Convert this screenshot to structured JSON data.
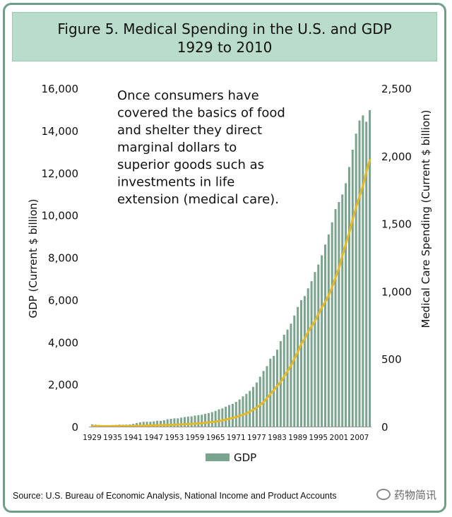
{
  "figure": {
    "title_line1": "Figure 5. Medical Spending in the U.S. and GDP",
    "title_line2": "1929 to 2010",
    "source": "Source: U.S. Bureau of Economic Analysis, National Income and Product Accounts",
    "watermark": "药物简讯",
    "colors": {
      "frame": "#6f9f86",
      "title_bg": "#b9dccb",
      "bar": "#7aa48e",
      "line": "#e3b92a"
    }
  },
  "chart_data": {
    "type": "bar",
    "annotation": [
      "Once consumers have",
      "covered the basics of food",
      "and shelter they direct",
      "marginal dollars to",
      "superior goods such as",
      "investments in life",
      "extension (medical care)."
    ],
    "x_tick_labels": [
      "1929",
      "1935",
      "1941",
      "1947",
      "1953",
      "1959",
      "1965",
      "1971",
      "1977",
      "1983",
      "1989",
      "1995",
      "2001",
      "2007"
    ],
    "ylabel": "GDP (Current $ billion)",
    "y2label": "Medical Care Spending (Current $ billion)",
    "ylim": [
      0,
      16000
    ],
    "y2lim": [
      0,
      2500
    ],
    "y_ticks": [
      "0",
      "2,000",
      "4,000",
      "6,000",
      "8,000",
      "10,000",
      "12,000",
      "14,000",
      "16,000"
    ],
    "y2_ticks": [
      "0",
      "500",
      "1,000",
      "1,500",
      "2,000",
      "2,500"
    ],
    "legend": {
      "label": "GDP",
      "position": "bottom-center"
    },
    "x": [
      1929,
      1930,
      1931,
      1932,
      1933,
      1934,
      1935,
      1936,
      1937,
      1938,
      1939,
      1940,
      1941,
      1942,
      1943,
      1944,
      1945,
      1946,
      1947,
      1948,
      1949,
      1950,
      1951,
      1952,
      1953,
      1954,
      1955,
      1956,
      1957,
      1958,
      1959,
      1960,
      1961,
      1962,
      1963,
      1964,
      1965,
      1966,
      1967,
      1968,
      1969,
      1970,
      1971,
      1972,
      1973,
      1974,
      1975,
      1976,
      1977,
      1978,
      1979,
      1980,
      1981,
      1982,
      1983,
      1984,
      1985,
      1986,
      1987,
      1988,
      1989,
      1990,
      1991,
      1992,
      1993,
      1994,
      1995,
      1996,
      1997,
      1998,
      1999,
      2000,
      2001,
      2002,
      2003,
      2004,
      2005,
      2006,
      2007,
      2008,
      2009,
      2010
    ],
    "series": [
      {
        "name": "GDP",
        "axis": "left",
        "type": "bar",
        "values": [
          104,
          92,
          77,
          60,
          57,
          67,
          74,
          85,
          93,
          87,
          93,
          103,
          129,
          166,
          203,
          225,
          228,
          228,
          250,
          275,
          272,
          300,
          347,
          367,
          389,
          391,
          425,
          449,
          474,
          482,
          522,
          543,
          563,
          605,
          638,
          686,
          744,
          815,
          862,
          943,
          1020,
          1076,
          1168,
          1283,
          1429,
          1549,
          1689,
          1877,
          2086,
          2357,
          2632,
          2862,
          3211,
          3345,
          3638,
          4041,
          4347,
          4590,
          4870,
          5253,
          5658,
          5980,
          6174,
          6539,
          6879,
          7309,
          7664,
          8100,
          8609,
          9089,
          9661,
          10285,
          10622,
          10978,
          11511,
          12275,
          13094,
          13856,
          14478,
          14719,
          14419,
          14964
        ]
      },
      {
        "name": "",
        "axis": "right",
        "type": "line",
        "values": [
          4,
          4,
          4,
          3,
          3,
          3,
          3,
          4,
          4,
          4,
          4,
          4,
          4,
          5,
          6,
          6,
          7,
          8,
          9,
          10,
          10,
          11,
          12,
          13,
          14,
          15,
          16,
          17,
          19,
          20,
          22,
          24,
          26,
          28,
          31,
          34,
          37,
          41,
          46,
          52,
          58,
          64,
          71,
          79,
          88,
          98,
          110,
          125,
          140,
          160,
          180,
          210,
          240,
          270,
          300,
          330,
          370,
          410,
          450,
          500,
          550,
          610,
          650,
          700,
          740,
          780,
          830,
          880,
          920,
          970,
          1030,
          1100,
          1170,
          1260,
          1350,
          1430,
          1530,
          1620,
          1700,
          1780,
          1880,
          1970
        ]
      }
    ]
  }
}
